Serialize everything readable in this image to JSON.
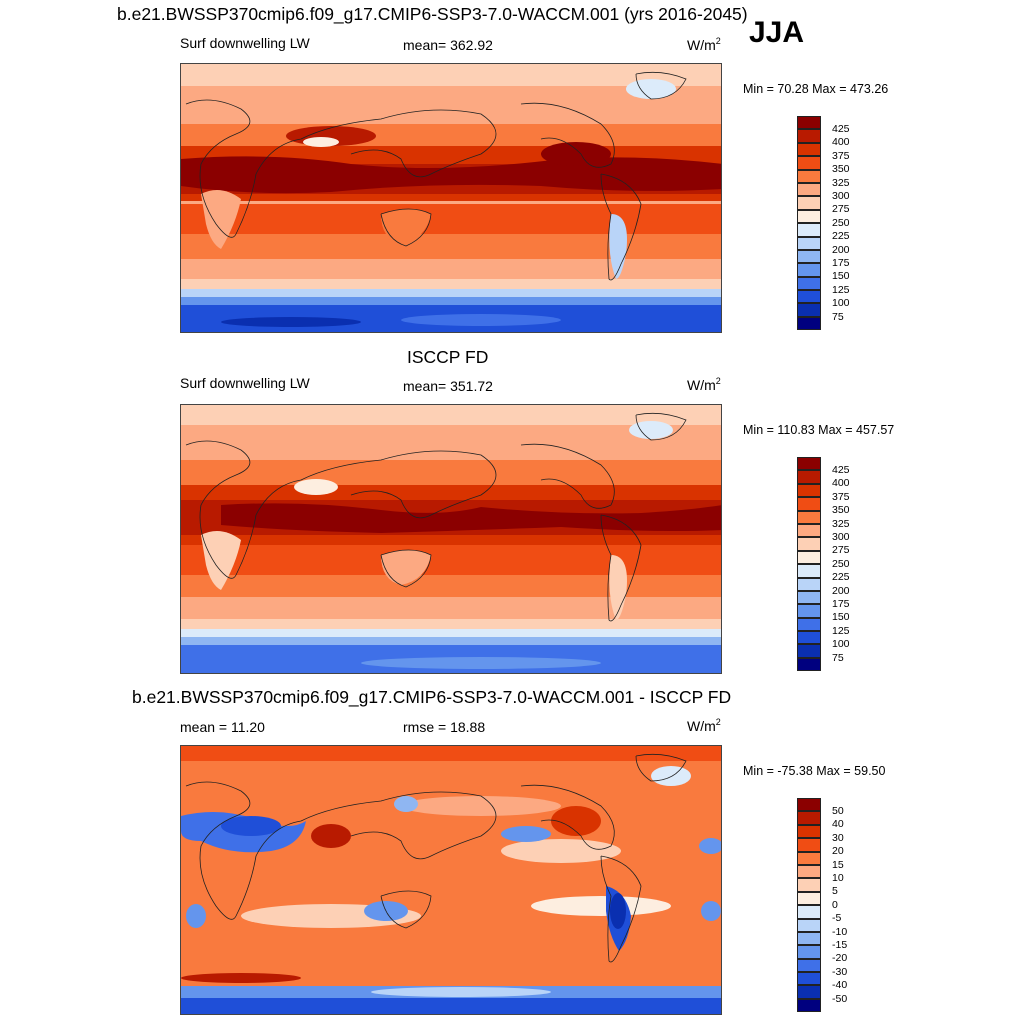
{
  "season": "JJA",
  "panels": [
    {
      "title": "b.e21.BWSSP370cmip6.f09_g17.CMIP6-SSP3-7.0-WACCM.001 (yrs 2016-2045)",
      "left_label": "Surf downwelling LW",
      "center_label": "mean= 362.92",
      "units_base": "W/m",
      "units_exp": "2",
      "minmax": "Min =  70.28 Max = 473.26",
      "colorbar": {
        "colors": [
          "#8b0000",
          "#b81a00",
          "#d93300",
          "#f04d14",
          "#f97a3e",
          "#fca982",
          "#fdd0b5",
          "#fdeee0",
          "#dcebfa",
          "#b9d4f8",
          "#8fb6f2",
          "#6495ed",
          "#3f70e8",
          "#1f4fd8",
          "#0a2fb0",
          "#00007f"
        ],
        "labels": [
          "425",
          "400",
          "375",
          "350",
          "325",
          "300",
          "275",
          "250",
          "225",
          "200",
          "175",
          "150",
          "125",
          "100",
          "75"
        ]
      }
    },
    {
      "title": "ISCCP FD",
      "left_label": "Surf downwelling LW",
      "center_label": "mean= 351.72",
      "units_base": "W/m",
      "units_exp": "2",
      "minmax": "Min = 110.83 Max = 457.57",
      "colorbar": {
        "colors": [
          "#8b0000",
          "#b81a00",
          "#d93300",
          "#f04d14",
          "#f97a3e",
          "#fca982",
          "#fdd0b5",
          "#fdeee0",
          "#dcebfa",
          "#b9d4f8",
          "#8fb6f2",
          "#6495ed",
          "#3f70e8",
          "#1f4fd8",
          "#0a2fb0",
          "#00007f"
        ],
        "labels": [
          "425",
          "400",
          "375",
          "350",
          "325",
          "300",
          "275",
          "250",
          "225",
          "200",
          "175",
          "150",
          "125",
          "100",
          "75"
        ]
      }
    },
    {
      "title": "b.e21.BWSSP370cmip6.f09_g17.CMIP6-SSP3-7.0-WACCM.001 - ISCCP FD",
      "left_label": "mean =  11.20",
      "center_label": "rmse =  18.88",
      "units_base": "W/m",
      "units_exp": "2",
      "minmax": "Min = -75.38 Max =  59.50",
      "colorbar": {
        "colors": [
          "#8b0000",
          "#b81a00",
          "#d93300",
          "#f04d14",
          "#f97a3e",
          "#fca982",
          "#fdd0b5",
          "#fdeee0",
          "#dcebfa",
          "#b9d4f8",
          "#8fb6f2",
          "#6495ed",
          "#3f70e8",
          "#1f4fd8",
          "#0a2fb0",
          "#00007f"
        ],
        "labels": [
          "50",
          "40",
          "30",
          "20",
          "15",
          "10",
          "5",
          "0",
          "-5",
          "-10",
          "-15",
          "-20",
          "-30",
          "-40",
          "-50"
        ]
      }
    }
  ]
}
